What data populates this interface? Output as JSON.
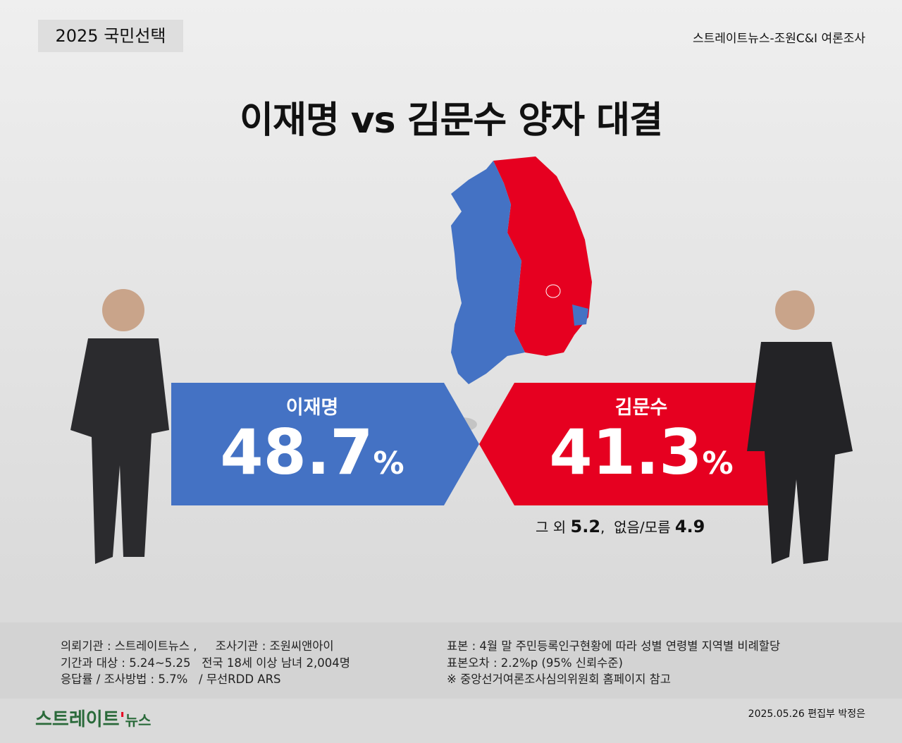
{
  "header": {
    "tag": "2025 국민선택",
    "source": "스트레이트뉴스-조원C&I 여론조사"
  },
  "title": "이재명 vs 김문수 양자 대결",
  "candidates": [
    {
      "name": "이재명",
      "value": 48.7,
      "unit": "%"
    },
    {
      "name": "김문수",
      "value": 41.3,
      "unit": "%"
    }
  ],
  "others": [
    {
      "label": "그 외",
      "value": 5.2
    },
    {
      "label": "없음/모름",
      "value": 4.9
    }
  ],
  "others_separator": ",",
  "footer": {
    "left": [
      "의뢰기관 : 스트레이트뉴스 ,     조사기관 : 조원씨앤아이",
      "기간과 대상 : 5.24~5.25   전국 18세 이상 남녀 2,004명",
      "응답률 / 조사방법 : 5.7%   / 무선RDD ARS"
    ],
    "right": [
      "표본 : 4월 말 주민등록인구현황에 따라 성별 연령별 지역별 비례할당",
      "표본오차 : 2.2%p (95% 신뢰수준)",
      "※ 중앙선거여론조사심의위원회 홈페이지 참고"
    ]
  },
  "brand": {
    "logo": "스트레이트",
    "logo_suffix": "뉴스",
    "credit": "2025.05.26 편집부 박정은"
  }
}
